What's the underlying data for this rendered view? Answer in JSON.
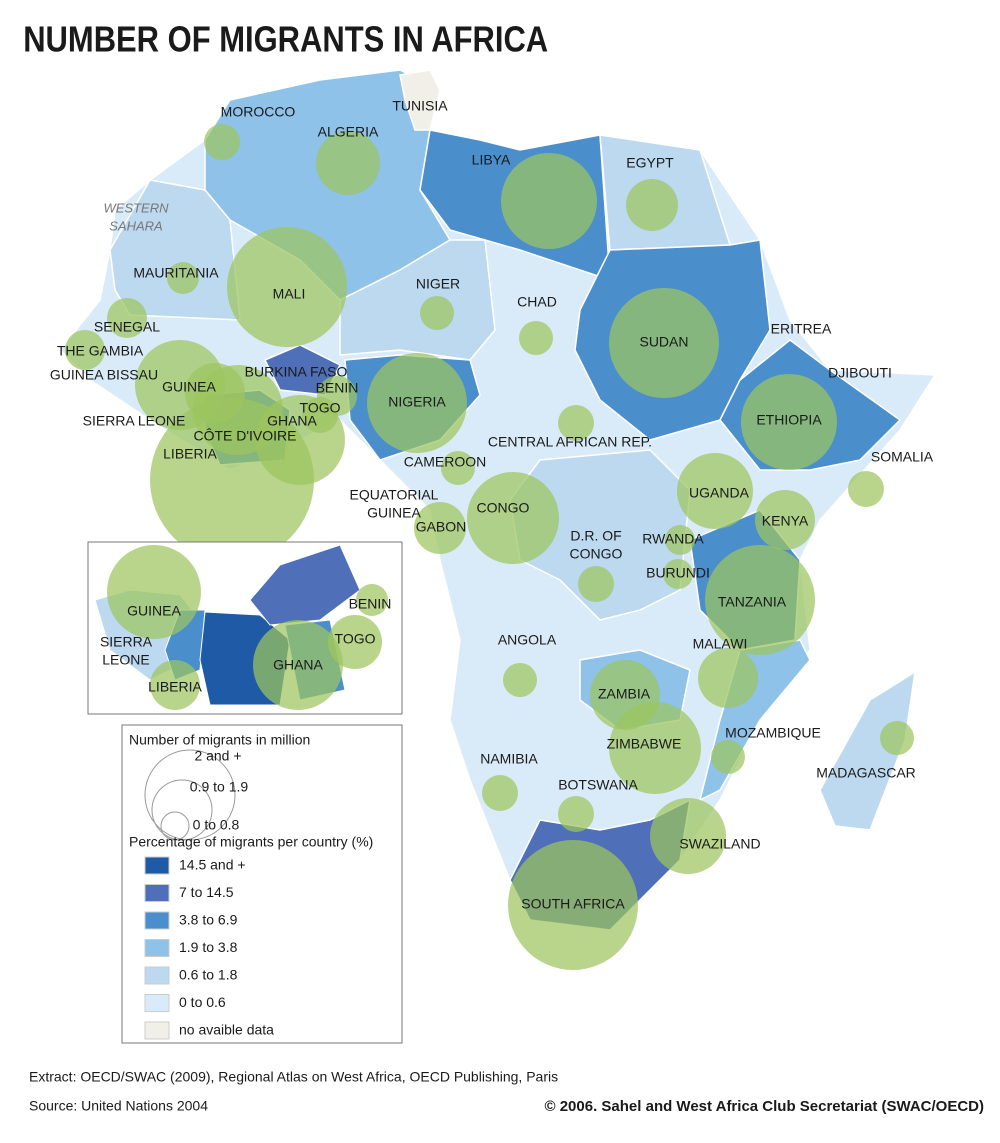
{
  "title": "NUMBER OF MIGRANTS IN AFRICA",
  "countries": [
    [
      "MOROCCO"
    ],
    [
      "TUNISIA"
    ],
    [
      "ALGERIA"
    ],
    [
      "LIBYA"
    ],
    [
      "EGYPT"
    ],
    [
      "WESTERN",
      "SAHARA"
    ],
    [
      "MAURITANIA"
    ],
    [
      "MALI"
    ],
    [
      "NIGER"
    ],
    [
      "CHAD"
    ],
    [
      "SUDAN"
    ],
    [
      "ERITREA"
    ],
    [
      "DJIBOUTI"
    ],
    [
      "SENEGAL"
    ],
    [
      "THE GAMBIA"
    ],
    [
      "GUINEA BISSAU"
    ],
    [
      "GUINEA"
    ],
    [
      "BURKINA FASO"
    ],
    [
      "BENIN"
    ],
    [
      "TOGO"
    ],
    [
      "NIGERIA"
    ],
    [
      "SIERRA LEONE"
    ],
    [
      "GHANA"
    ],
    [
      "CÔTE D'IVOIRE"
    ],
    [
      "LIBERIA"
    ],
    [
      "CENTRAL AFRICAN REP."
    ],
    [
      "ETHIOPIA"
    ],
    [
      "CAMEROON"
    ],
    [
      "SOMALIA"
    ],
    [
      "EQUATORIAL",
      "GUINEA"
    ],
    [
      "UGANDA"
    ],
    [
      "CONGO"
    ],
    [
      "GABON"
    ],
    [
      "KENYA"
    ],
    [
      "D.R. OF",
      "CONGO"
    ],
    [
      "RWANDA"
    ],
    [
      "BURUNDI"
    ],
    [
      "TANZANIA"
    ],
    [
      "ANGOLA"
    ],
    [
      "MALAWI"
    ],
    [
      "ZAMBIA"
    ],
    [
      "ZIMBABWE"
    ],
    [
      "MOZAMBIQUE"
    ],
    [
      "NAMIBIA"
    ],
    [
      "MADAGASCAR"
    ],
    [
      "BOTSWANA"
    ],
    [
      "SWAZILAND"
    ],
    [
      "SOUTH AFRICA"
    ]
  ],
  "inset": [
    [
      "GUINEA"
    ],
    [
      "SIERRA",
      "LEONE"
    ],
    [
      "LIBERIA"
    ],
    [
      "GHANA"
    ],
    [
      "TOGO"
    ],
    [
      "BENIN"
    ]
  ],
  "legend": {
    "size_title": "Number of migrants in million",
    "sizes": [
      "2 and +",
      "0.9 to 1.9",
      "0 to 0.8"
    ],
    "percent_title": "Percentage of migrants per country (%)",
    "classes": [
      {
        "label": "14.5 and +",
        "color": "#1f5aa6"
      },
      {
        "label": "7 to 14.5",
        "color": "#4f6fb8"
      },
      {
        "label": "3.8 to 6.9",
        "color": "#4a8fcb"
      },
      {
        "label": "1.9 to 3.8",
        "color": "#8ec2e8"
      },
      {
        "label": "0.6 to 1.8",
        "color": "#bcd9f0"
      },
      {
        "label": "0 to 0.6",
        "color": "#d9ebf8"
      },
      {
        "label": "no avaible data",
        "color": "#f1f0e8"
      }
    ]
  },
  "footer": {
    "extract": "Extract: OECD/SWAC (2009), Regional Atlas on West Africa, OECD Publishing, Paris",
    "source": "Source: United Nations 2004",
    "copyright": "© 2006. Sahel and West Africa Club Secretariat (SWAC/OECD)"
  }
}
